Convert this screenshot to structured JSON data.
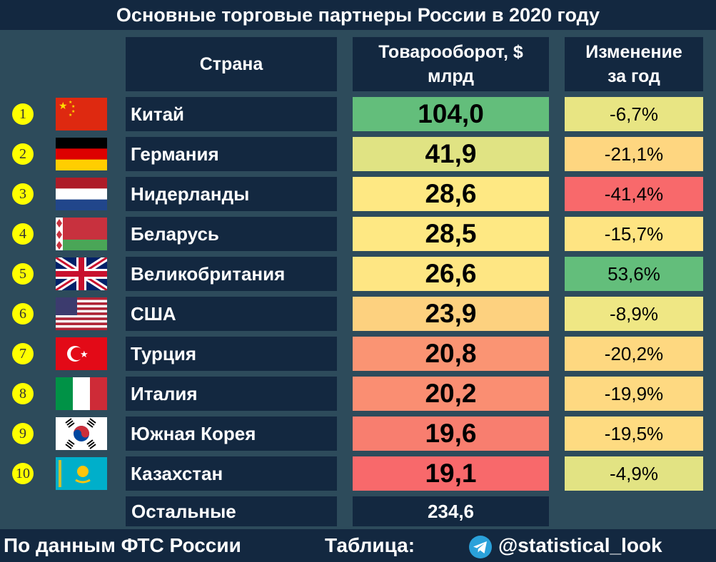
{
  "header": {
    "title": "Основные торговые партнеры России в 2020 году"
  },
  "table": {
    "headers": [
      "Страна",
      "Товарооборот, $ млрд",
      "Изменение за год"
    ],
    "rows": [
      {
        "rank": "1",
        "country": "Китай",
        "turnover": "104,0",
        "change": "-6,7%",
        "turnover_color": "#63be7b",
        "change_color": "#e8e583"
      },
      {
        "rank": "2",
        "country": "Германия",
        "turnover": "41,9",
        "change": "-21,1%",
        "turnover_color": "#e0e383",
        "change_color": "#fed680"
      },
      {
        "rank": "3",
        "country": "Нидерланды",
        "turnover": "28,6",
        "change": "-41,4%",
        "turnover_color": "#fee883",
        "change_color": "#f8696b"
      },
      {
        "rank": "4",
        "country": "Беларусь",
        "turnover": "28,5",
        "change": "-15,7%",
        "turnover_color": "#fee883",
        "change_color": "#fee482"
      },
      {
        "rank": "5",
        "country": "Великобритания",
        "turnover": "26,6",
        "change": "53,6%",
        "turnover_color": "#fee683",
        "change_color": "#63be7b"
      },
      {
        "rank": "6",
        "country": "США",
        "turnover": "23,9",
        "change": "-8,9%",
        "turnover_color": "#fdd17f",
        "change_color": "#efe784"
      },
      {
        "rank": "7",
        "country": "Турция",
        "turnover": "20,8",
        "change": "-20,2%",
        "turnover_color": "#fa9473",
        "change_color": "#fed880"
      },
      {
        "rank": "8",
        "country": "Италия",
        "turnover": "20,2",
        "change": "-19,9%",
        "turnover_color": "#fa8e72",
        "change_color": "#fed981"
      },
      {
        "rank": "9",
        "country": "Южная Корея",
        "turnover": "19,6",
        "change": "-19,5%",
        "turnover_color": "#f87e6f",
        "change_color": "#fedb81"
      },
      {
        "rank": "10",
        "country": "Казахстан",
        "turnover": "19,1",
        "change": "-4,9%",
        "turnover_color": "#f8696b",
        "change_color": "#e2e383"
      }
    ],
    "other": {
      "country": "Остальные",
      "turnover": "234,6"
    }
  },
  "footer": {
    "source": "По данным ФТС России",
    "table_label": "Таблица:",
    "handle": "@statistical_look"
  }
}
